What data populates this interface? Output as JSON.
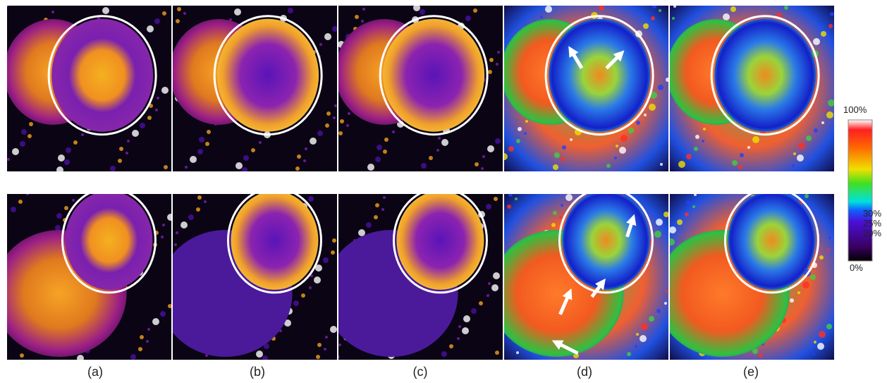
{
  "panels": {
    "labels": [
      "(a)",
      "(b)",
      "(c)",
      "(d)",
      "(e)"
    ]
  },
  "colorbar": {
    "labels": [
      "100%",
      "30%",
      "25%",
      "20%",
      "0%"
    ]
  }
}
